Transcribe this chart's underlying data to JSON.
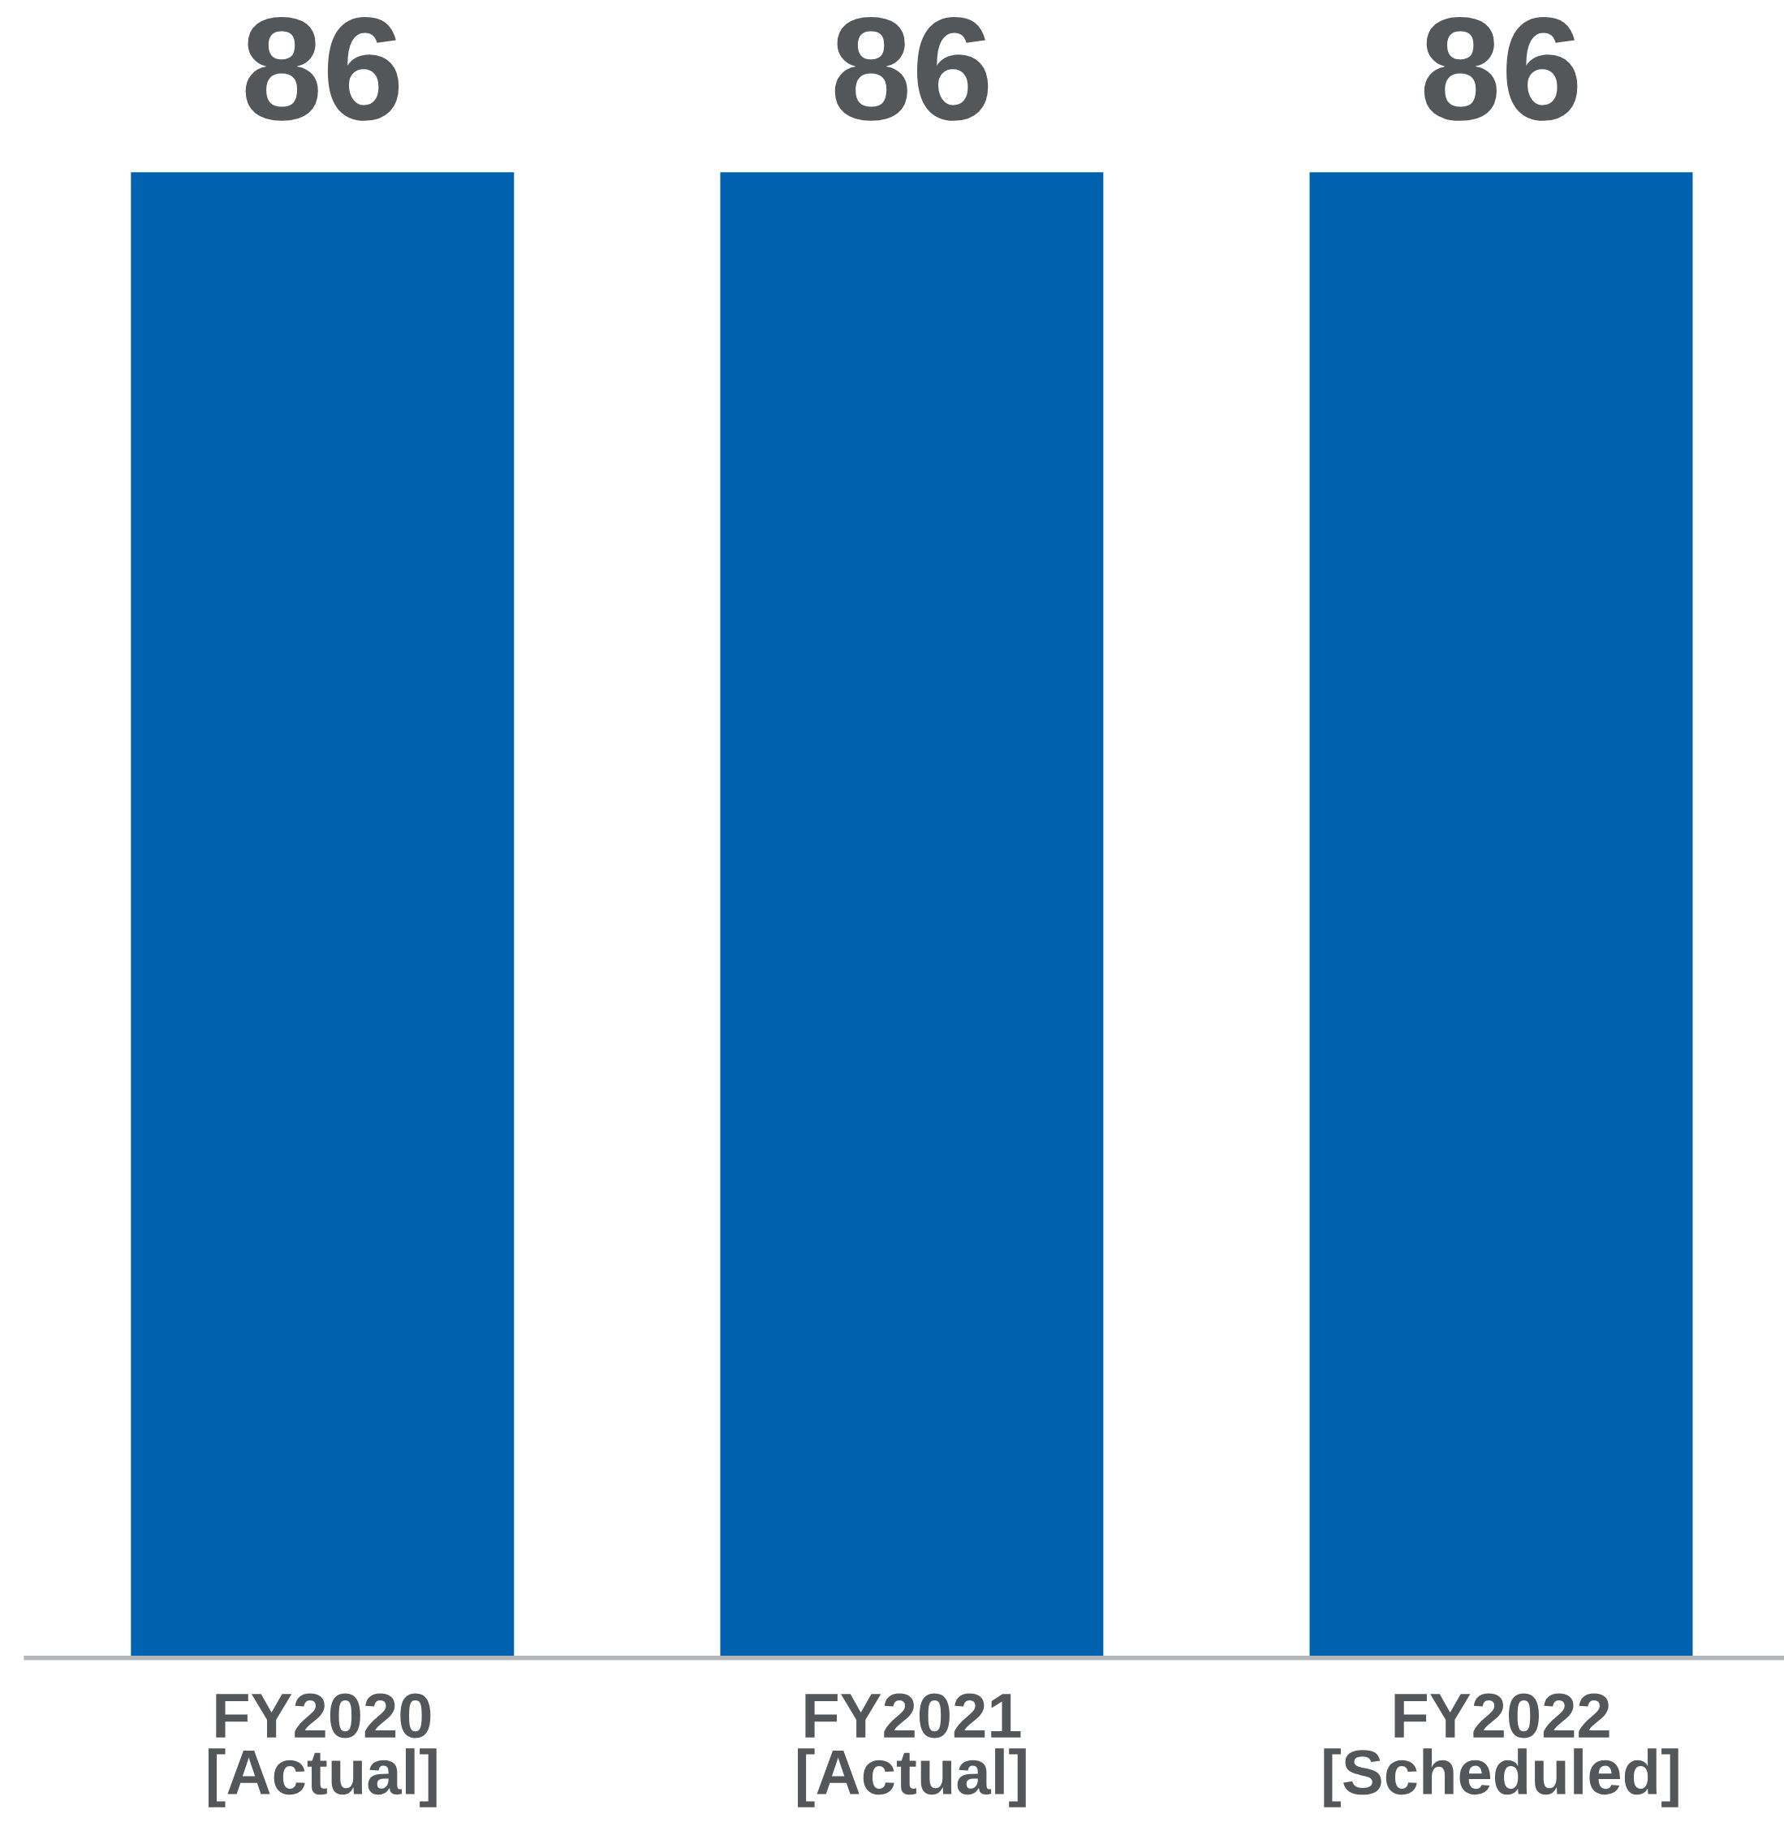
{
  "chart_data": {
    "type": "bar",
    "categories": [
      "FY2020\n[Actual]",
      "FY2021\n[Actual]",
      "FY2022\n[Scheduled]"
    ],
    "values": [
      86,
      86,
      86
    ],
    "color": "#0062ae",
    "data_labels": true,
    "grid": false,
    "legend": false
  }
}
